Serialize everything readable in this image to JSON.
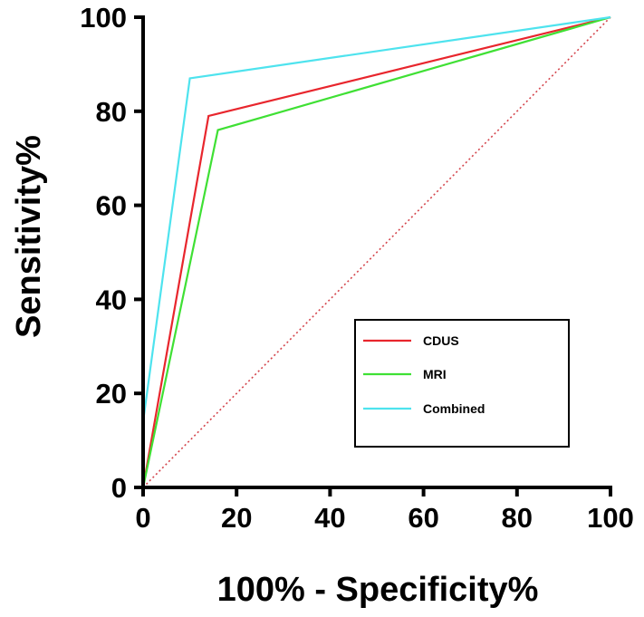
{
  "chart_data": {
    "type": "line",
    "title": "",
    "xlabel": "100% - Specificity%",
    "ylabel": "Sensitivity%",
    "xlim": [
      0,
      100
    ],
    "ylim": [
      0,
      100
    ],
    "xticks": [
      0,
      20,
      40,
      60,
      80,
      100
    ],
    "yticks": [
      0,
      20,
      40,
      60,
      80,
      100
    ],
    "grid": false,
    "legend_position": "bottom-right",
    "series": [
      {
        "name": "CDUS",
        "color": "#e8262d",
        "x": [
          0,
          14,
          100
        ],
        "y": [
          0,
          79,
          100
        ]
      },
      {
        "name": "MRI",
        "color": "#3fe034",
        "x": [
          0,
          16,
          100
        ],
        "y": [
          0,
          76,
          100
        ]
      },
      {
        "name": "Combined",
        "color": "#4ee3ee",
        "x": [
          0,
          10,
          100
        ],
        "y": [
          14,
          87,
          100
        ]
      }
    ],
    "reference_line": {
      "name": "chance",
      "color": "#d4454c",
      "style": "dotted",
      "x": [
        0,
        100
      ],
      "y": [
        0,
        100
      ]
    }
  }
}
